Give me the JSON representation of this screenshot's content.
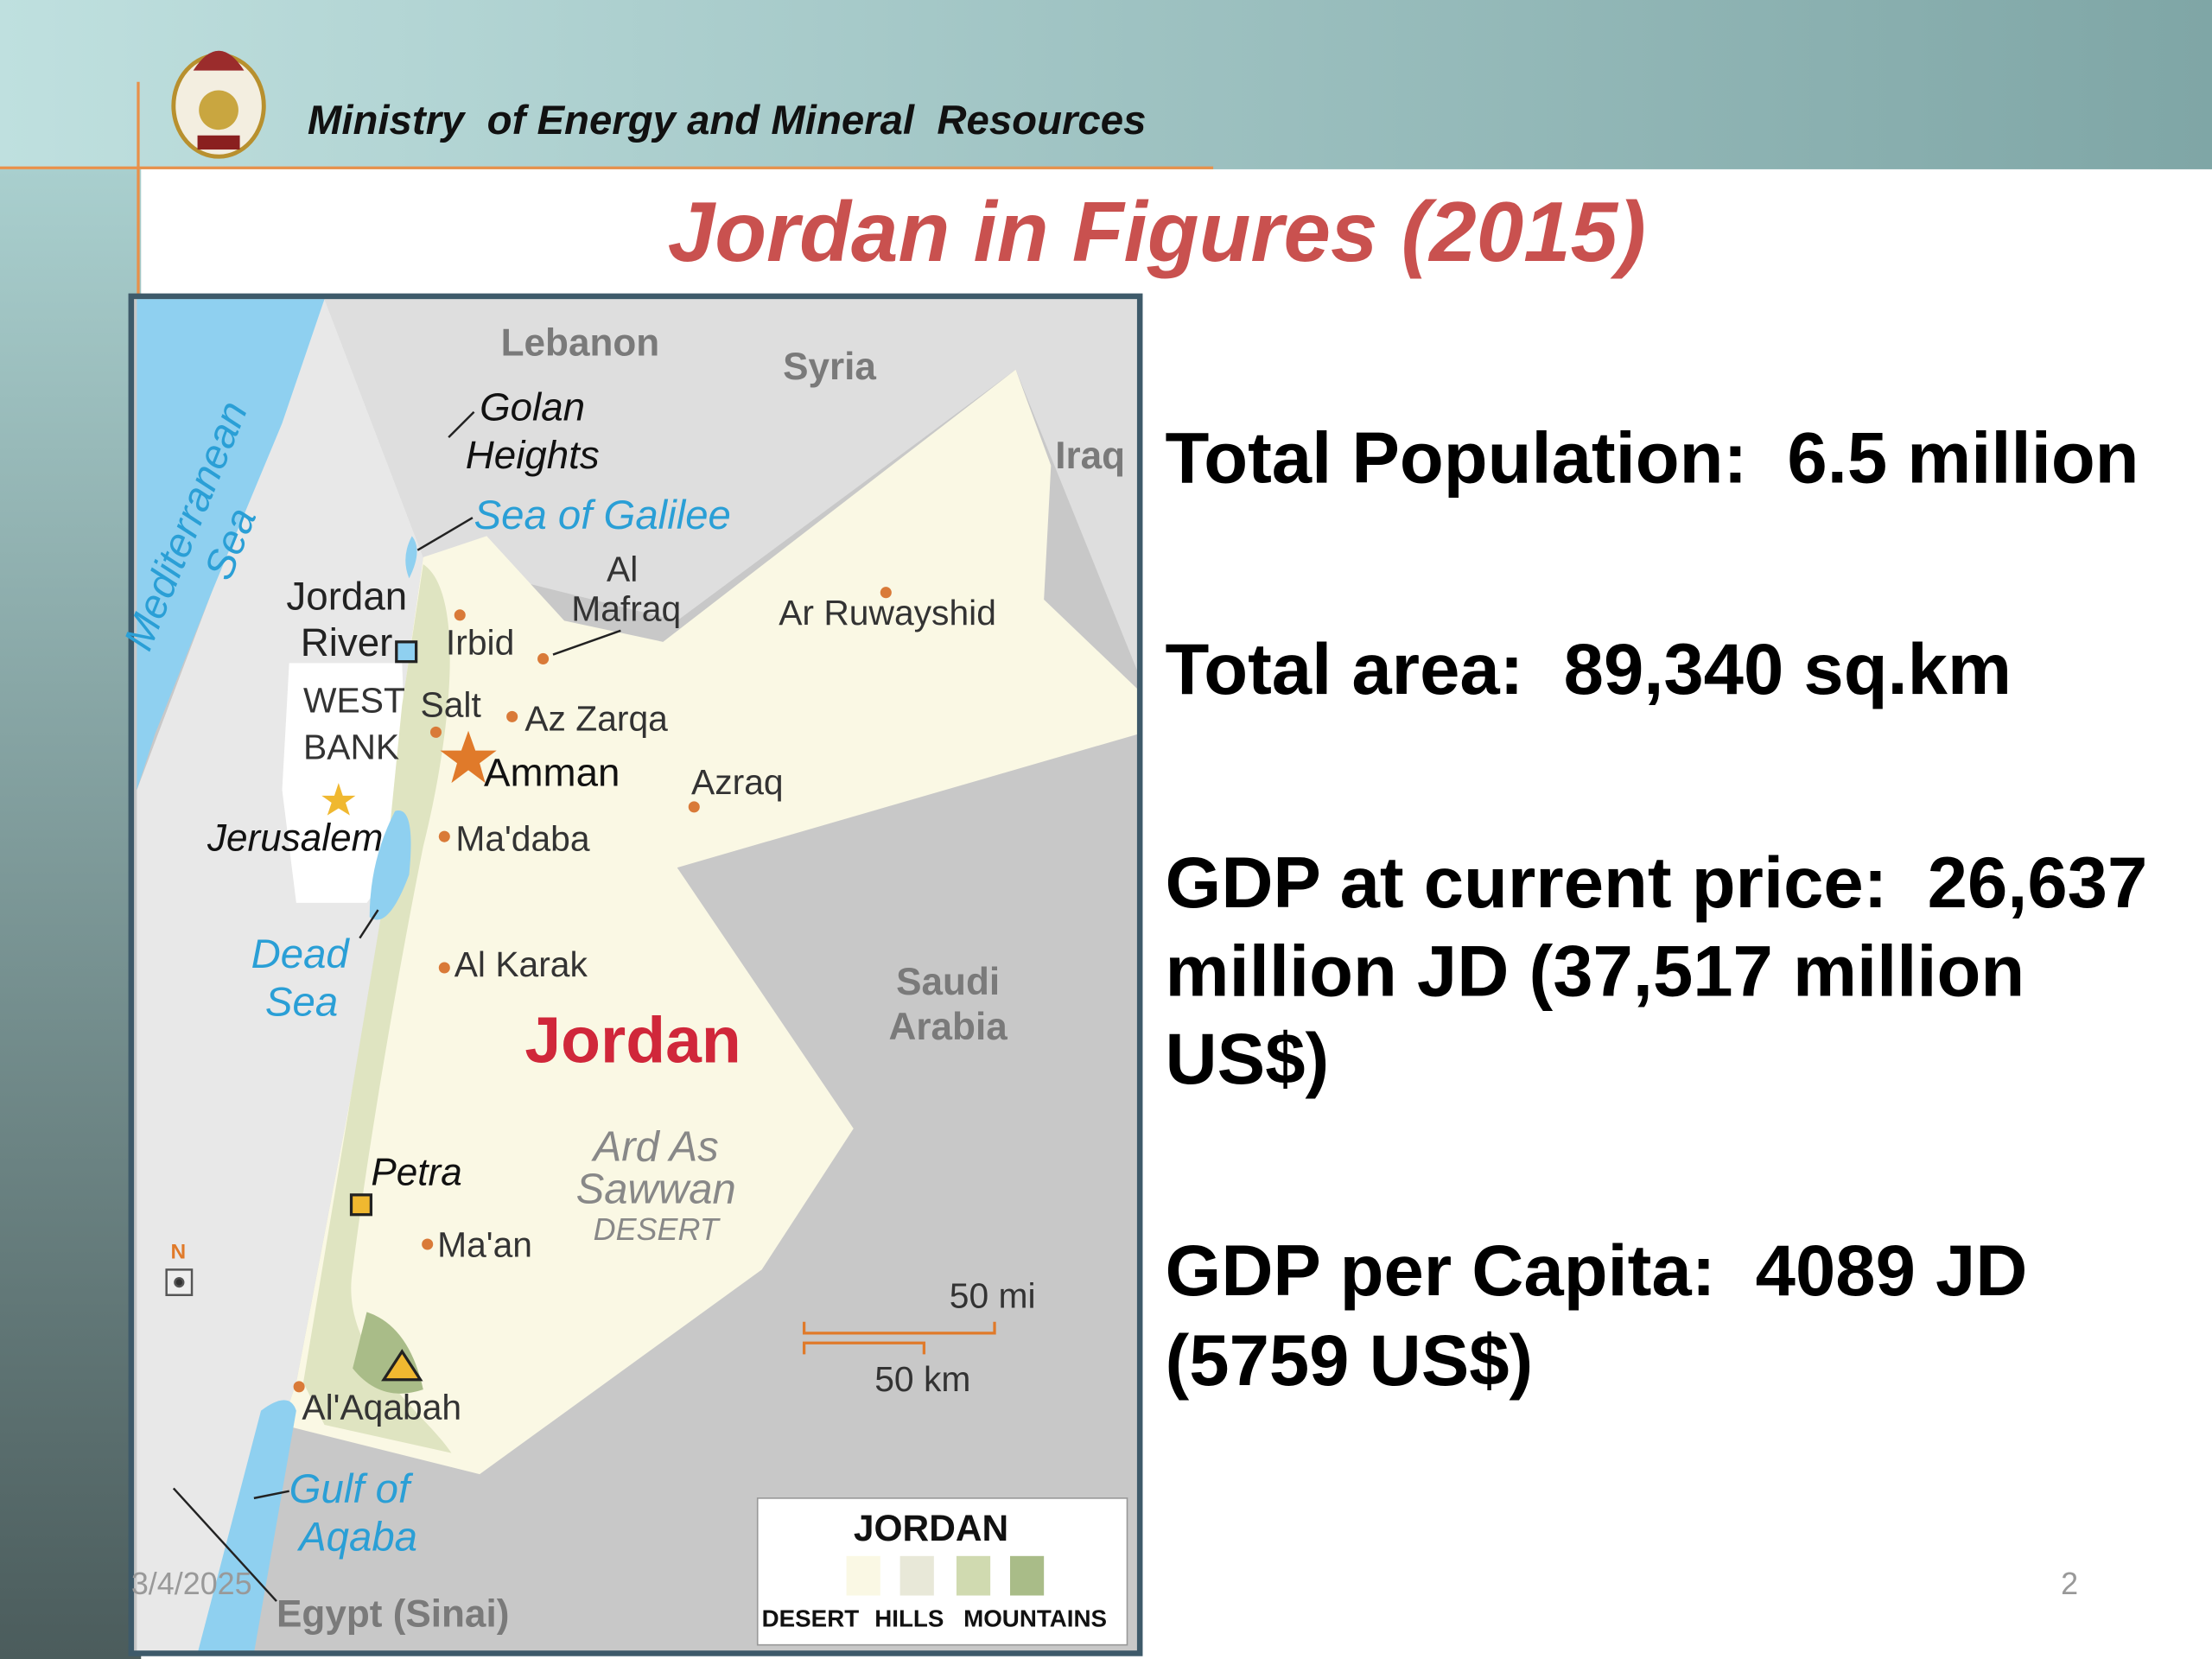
{
  "header": {
    "organization": "Ministry  of Energy and Mineral  Resources",
    "title": "Jordan in Figures (2015)"
  },
  "map": {
    "lebanon": "Lebanon",
    "syria": "Syria",
    "iraq": "Iraq",
    "golan_heights": [
      "Golan",
      "Heights"
    ],
    "sea_of_galilee": "Sea of Galilee",
    "mediterranean_sea": [
      "Mediterranean",
      "Sea"
    ],
    "jordan_river": [
      "Jordan",
      "River"
    ],
    "al_mafraq": [
      "Al",
      "Mafraq"
    ],
    "irbid": "Irbid",
    "ar_ruwayshid": "Ar Ruwayshid",
    "west_bank": [
      "WEST",
      "BANK"
    ],
    "salt": "Salt",
    "az_zarqa": "Az Zarqa",
    "amman": "Amman",
    "azraq": "Azraq",
    "jerusalem": "Jerusalem",
    "madaba": "Ma'daba",
    "dead_sea": [
      "Dead",
      "Sea"
    ],
    "al_karak": "Al Karak",
    "jordan": "Jordan",
    "saudi_arabia": [
      "Saudi",
      "Arabia"
    ],
    "ard_as_sawwan": [
      "Ard As",
      "Sawwan",
      "DESERT"
    ],
    "petra": "Petra",
    "maan": "Ma'an",
    "north": "N",
    "scale_mi": "50 mi",
    "scale_km": "50 km",
    "al_aqabah": "Al'Aqabah",
    "gulf_of_aqaba": [
      "Gulf of",
      "Aqaba"
    ],
    "egypt": "Egypt (Sinai)",
    "legend": {
      "title": "JORDAN",
      "items": [
        "DESERT",
        "HILLS",
        "MOUNTAINS"
      ]
    }
  },
  "facts": [
    [
      "Total Population:  6.5 million"
    ],
    [
      "Total area:  89,340 sq.km"
    ],
    [
      "GDP at current price:  26,637",
      "million JD (37,517 million",
      "US$)"
    ],
    [
      "GDP per Capita:  4089 JD",
      "(5759 US$)"
    ]
  ],
  "footer": {
    "date": "3/4/2025",
    "page": "2"
  }
}
